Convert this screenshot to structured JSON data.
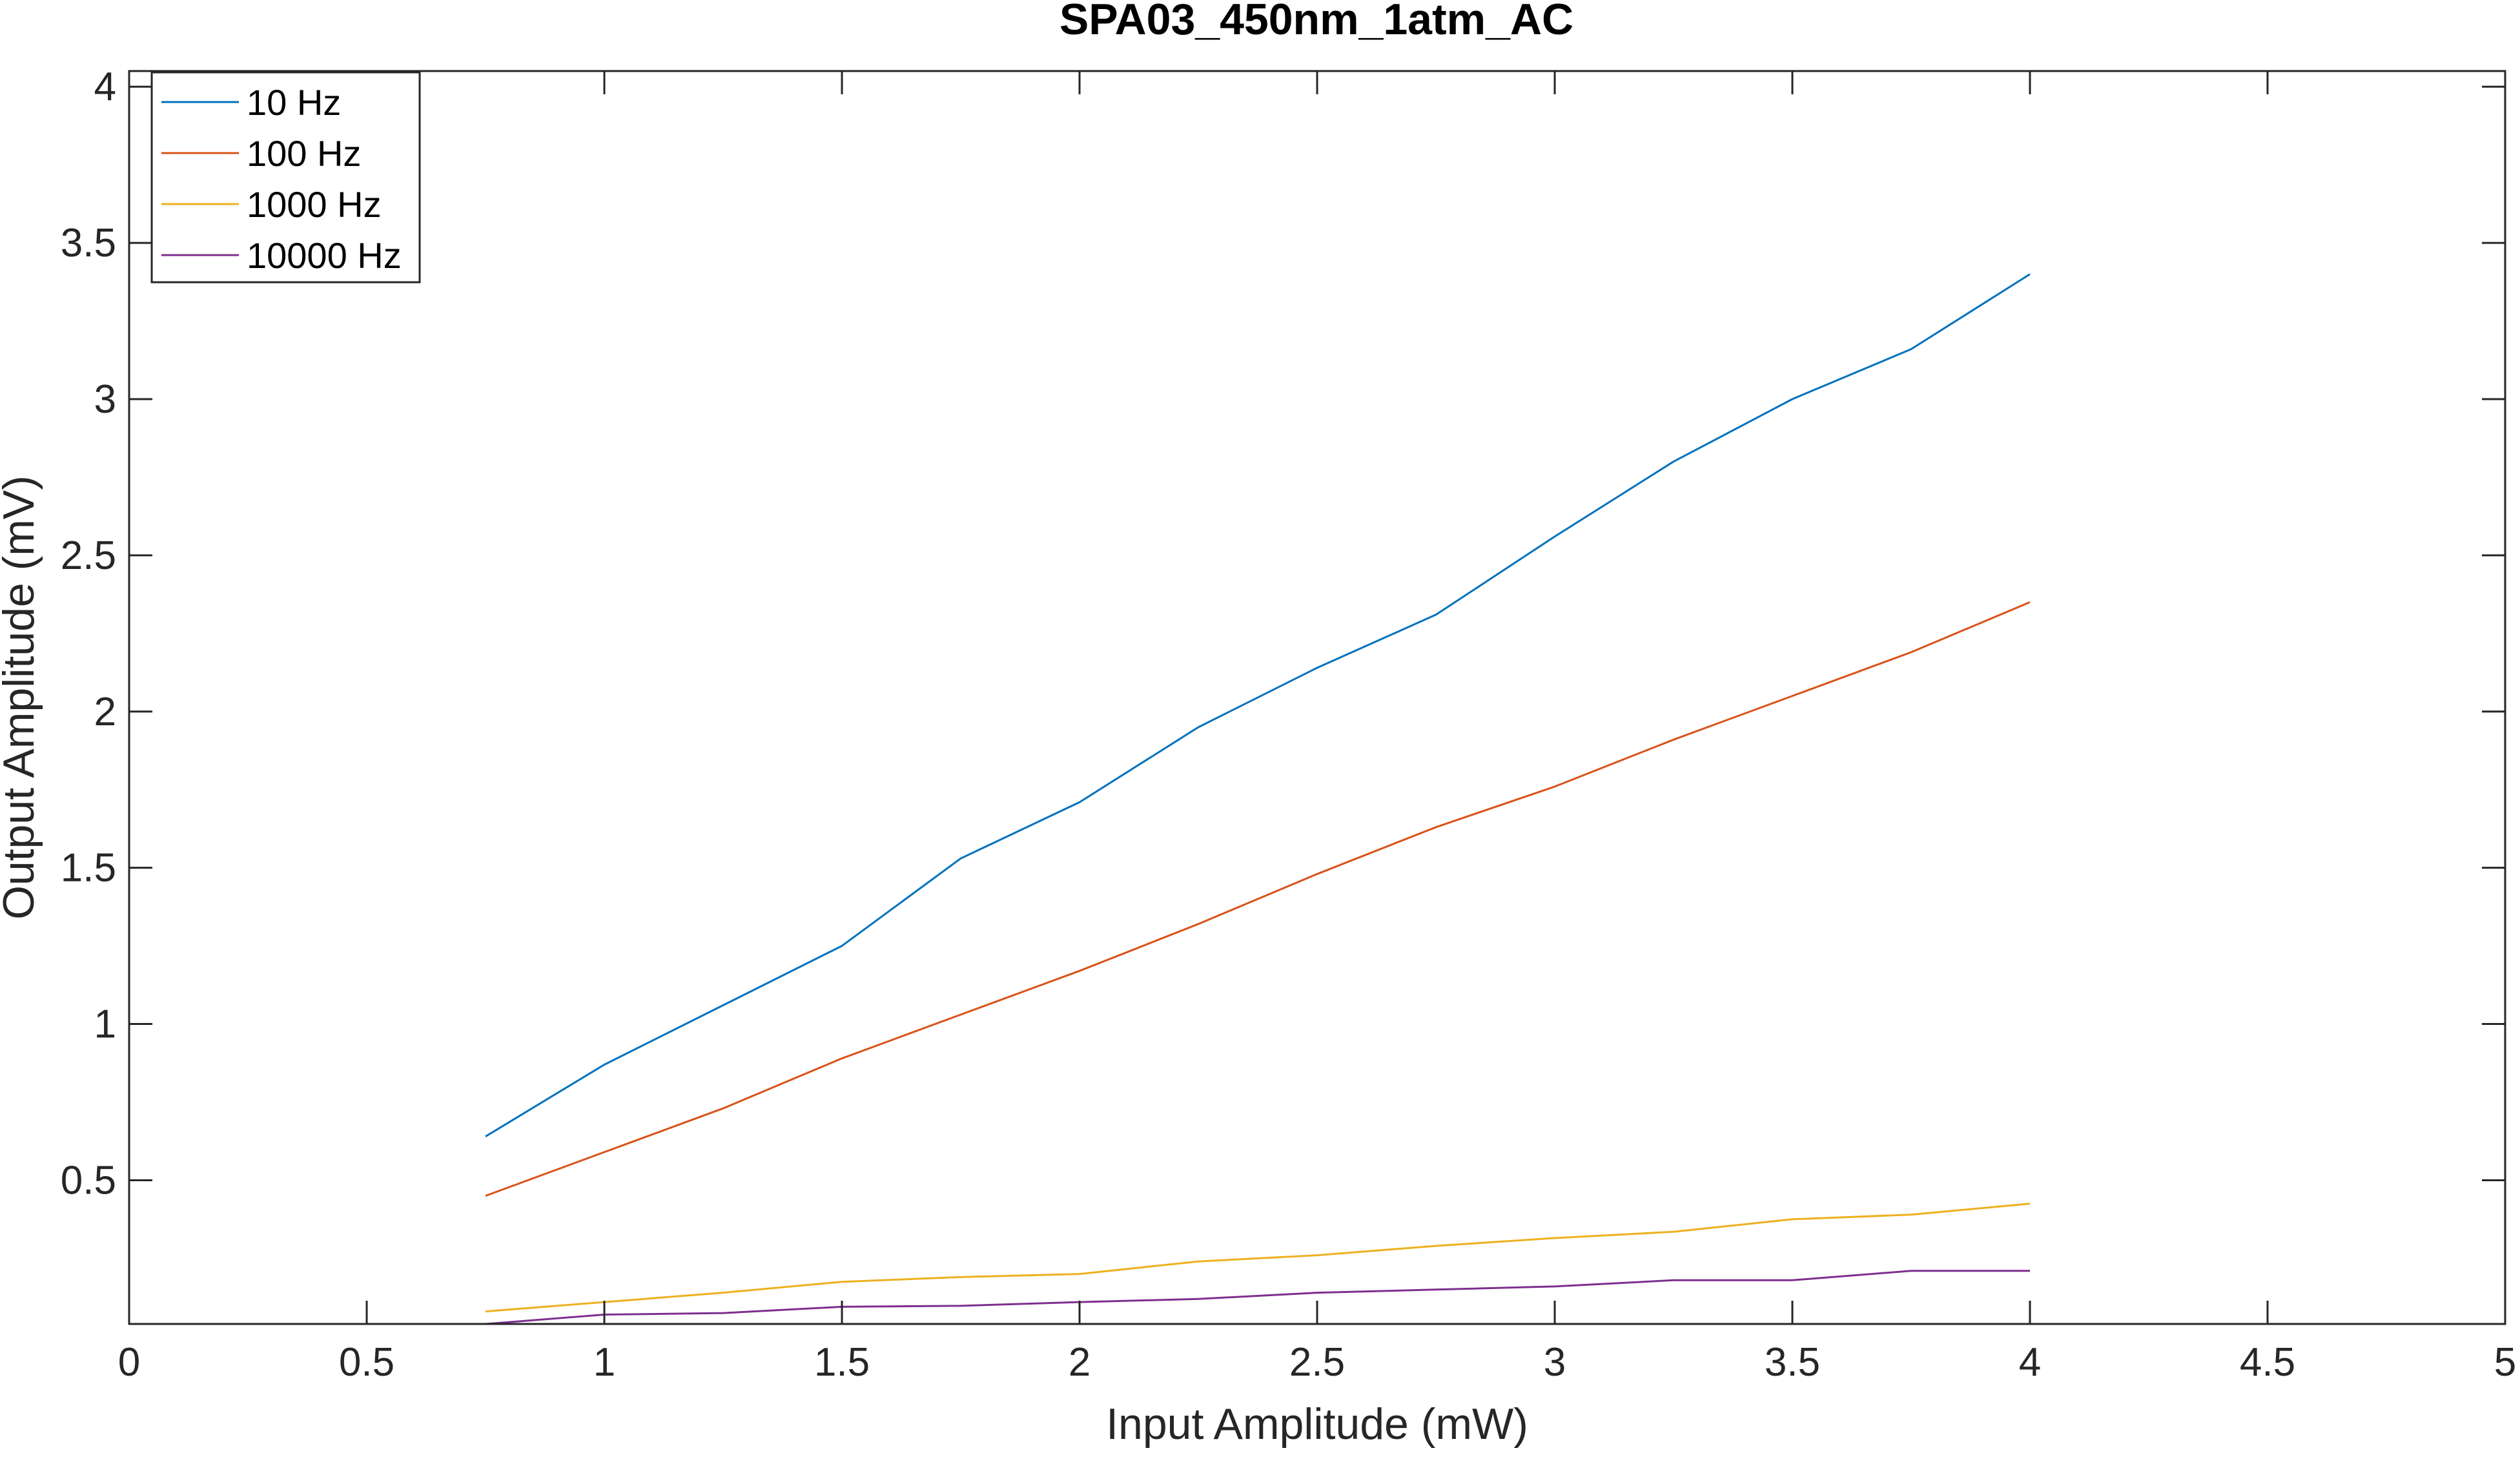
{
  "chart_data": {
    "type": "line",
    "title": "SPA03_450nm_1atm_AC",
    "xlabel": "Input Amplitude (mW)",
    "ylabel": "Output Amplitude (mV)",
    "xlim": [
      0,
      5
    ],
    "ylim": [
      0.04,
      4.05
    ],
    "xticks": [
      0,
      0.5,
      1,
      1.5,
      2,
      2.5,
      3,
      3.5,
      4,
      4.5,
      5
    ],
    "xtick_labels": [
      "0",
      "0.5",
      "1",
      "1.5",
      "2",
      "2.5",
      "3",
      "3.5",
      "4",
      "4.5",
      "5"
    ],
    "yticks": [
      0.5,
      1,
      1.5,
      2,
      2.5,
      3,
      3.5,
      4
    ],
    "ytick_labels": [
      "0.5",
      "1",
      "1.5",
      "2",
      "2.5",
      "3",
      "3.5",
      "4"
    ],
    "grid": false,
    "legend_position": "top-left",
    "x": [
      0.75,
      1,
      1.25,
      1.5,
      1.75,
      2,
      2.25,
      2.5,
      2.75,
      3,
      3.25,
      3.5,
      3.75,
      4
    ],
    "series": [
      {
        "name": "10 Hz",
        "color": "#0072BD",
        "values": [
          0.64,
          0.87,
          1.06,
          1.25,
          1.53,
          1.71,
          1.95,
          2.14,
          2.31,
          2.56,
          2.8,
          3.0,
          3.16,
          3.4
        ]
      },
      {
        "name": "100 Hz",
        "color": "#D95319",
        "values": [
          0.45,
          0.59,
          0.73,
          0.89,
          1.03,
          1.17,
          1.32,
          1.48,
          1.63,
          1.76,
          1.91,
          2.05,
          2.19,
          2.35
        ]
      },
      {
        "name": "1000 Hz",
        "color": "#EDB120",
        "values": [
          0.08,
          0.11,
          0.14,
          0.175,
          0.19,
          0.2,
          0.24,
          0.26,
          0.29,
          0.315,
          0.335,
          0.375,
          0.39,
          0.425
        ]
      },
      {
        "name": "10000 Hz",
        "color": "#7E2F8E",
        "values": [
          0.04,
          0.07,
          0.075,
          0.095,
          0.098,
          0.11,
          0.12,
          0.14,
          0.15,
          0.16,
          0.18,
          0.18,
          0.21,
          0.21
        ]
      }
    ]
  }
}
